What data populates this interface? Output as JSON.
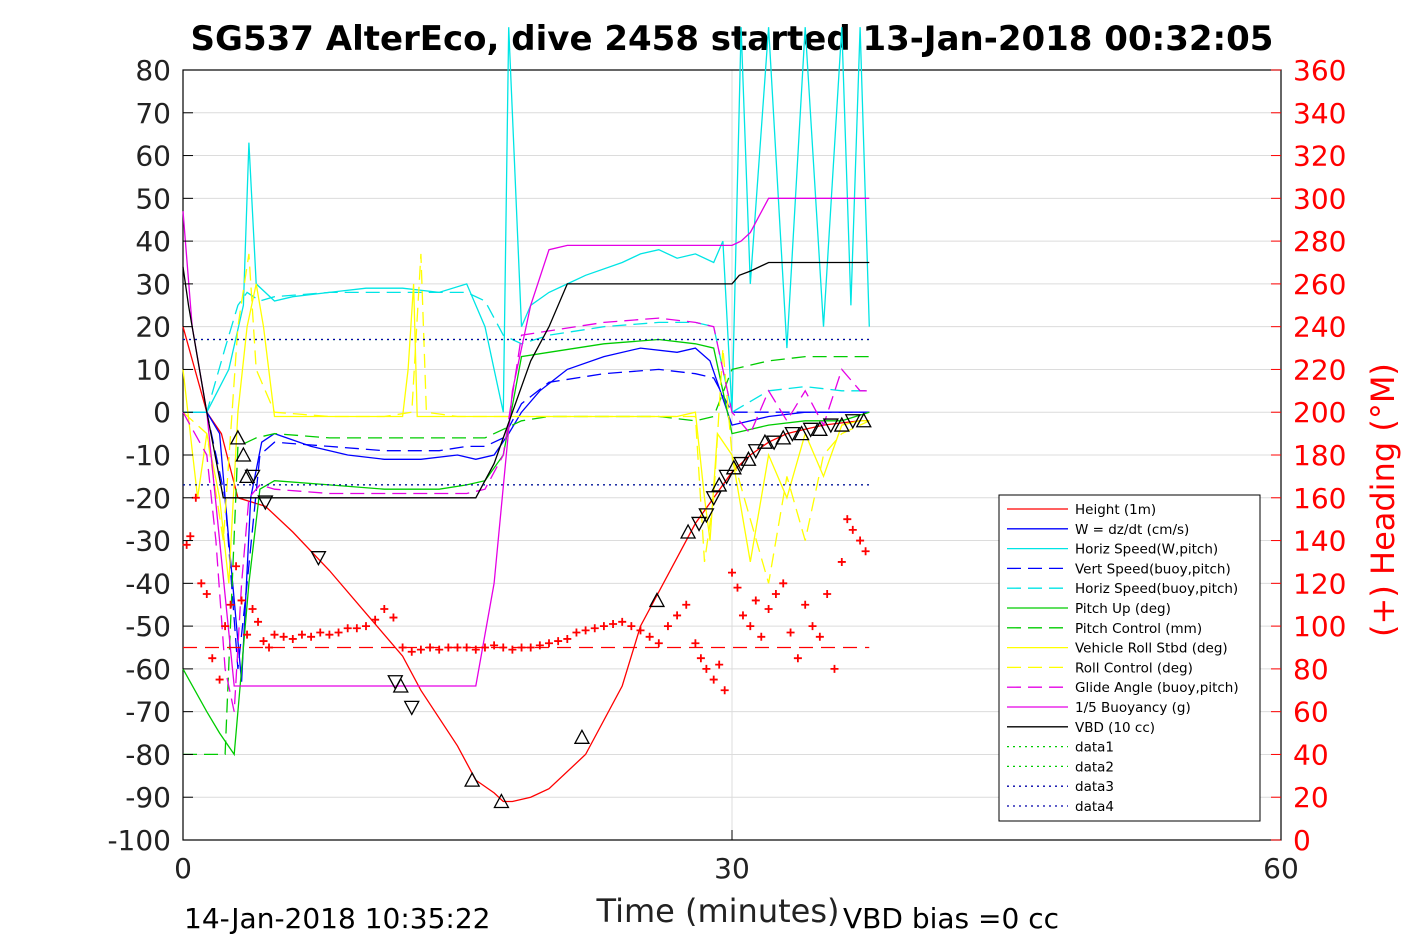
{
  "chart_data": {
    "type": "line",
    "title": "SG537 AlterEco, dive 2458 started 13-Jan-2018 00:32:05",
    "xlabel": "Time (minutes)",
    "ylabel": "",
    "ylabel_right": "(+) Heading (°M)",
    "xlim": [
      0,
      60
    ],
    "ylim": [
      -100,
      80
    ],
    "ylim_right": [
      0,
      360
    ],
    "xticks": [
      "0",
      "30",
      "60"
    ],
    "yticks": [
      "80",
      "70",
      "60",
      "50",
      "40",
      "30",
      "20",
      "10",
      "0",
      "-10",
      "-20",
      "-30",
      "-40",
      "-50",
      "-60",
      "-70",
      "-80",
      "-90",
      "-100"
    ],
    "yticks_right": [
      "360",
      "340",
      "320",
      "300",
      "280",
      "260",
      "240",
      "220",
      "200",
      "180",
      "160",
      "140",
      "120",
      "100",
      "80",
      "60",
      "40",
      "20",
      "0"
    ],
    "grid": true,
    "legend_position": "lower-right",
    "right_axis_color": "#ff0000",
    "footer_left": "14-Jan-2018 10:35:22",
    "footer_right": "VBD bias =0 cc",
    "legend": [
      {
        "name": "Height (1m)",
        "color": "#ff0000",
        "dash": "solid"
      },
      {
        "name": "W = dz/dt (cm/s)",
        "color": "#0000ff",
        "dash": "solid"
      },
      {
        "name": "Horiz Speed(W,pitch)",
        "color": "#00e5e5",
        "dash": "solid"
      },
      {
        "name": "Vert Speed(buoy,pitch)",
        "color": "#0000ff",
        "dash": "dashed"
      },
      {
        "name": "Horiz Speed(buoy,pitch)",
        "color": "#00e5e5",
        "dash": "dashed"
      },
      {
        "name": "Pitch Up (deg)",
        "color": "#00cc00",
        "dash": "solid"
      },
      {
        "name": "Pitch Control (mm)",
        "color": "#00cc00",
        "dash": "dashed"
      },
      {
        "name": "Vehicle Roll Stbd (deg)",
        "color": "#ffff00",
        "dash": "solid"
      },
      {
        "name": "Roll Control (deg)",
        "color": "#ffff00",
        "dash": "dashed"
      },
      {
        "name": "Glide Angle (buoy,pitch)",
        "color": "#e500e5",
        "dash": "dashed"
      },
      {
        "name": "1/5 Buoyancy (g)",
        "color": "#e500e5",
        "dash": "solid"
      },
      {
        "name": "VBD (10 cc)",
        "color": "#000000",
        "dash": "solid"
      },
      {
        "name": "data1",
        "color": "#00cc00",
        "dash": "dotted"
      },
      {
        "name": "data2",
        "color": "#00cc00",
        "dash": "dotted"
      },
      {
        "name": "data3",
        "color": "#0000aa",
        "dash": "dotted"
      },
      {
        "name": "data4",
        "color": "#0000aa",
        "dash": "dotted"
      }
    ],
    "series": [
      {
        "name": "Height (1m)",
        "color": "#ff0000",
        "dash": "solid",
        "x": [
          0,
          1.3,
          2.1,
          3,
          4.5,
          6,
          8,
          10,
          12,
          13,
          15,
          16,
          17,
          17.5,
          18,
          19,
          20,
          22,
          24,
          25,
          27,
          28,
          29,
          30,
          31,
          32,
          33,
          34,
          35,
          36,
          37,
          37.5
        ],
        "y": [
          20,
          0,
          -5,
          -20,
          -22,
          -28,
          -37,
          -47,
          -57,
          -65,
          -78,
          -86,
          -89,
          -91,
          -91,
          -90,
          -88,
          -80,
          -64,
          -50,
          -34,
          -26,
          -20,
          -14,
          -10,
          -7,
          -5,
          -4,
          -3,
          -2.5,
          -2,
          -2
        ]
      },
      {
        "name": "W = dz/dt (cm/s)",
        "color": "#0000ff",
        "dash": "solid",
        "x": [
          0,
          1.3,
          2,
          2.5,
          3.2,
          3.7,
          4.3,
          5,
          7,
          9,
          11,
          13,
          15,
          16,
          17,
          17.8,
          18.5,
          19.5,
          21,
          23,
          25,
          27,
          28,
          28.8,
          30,
          32,
          34,
          36,
          37,
          37.5
        ],
        "y": [
          0,
          0,
          -5,
          -30,
          -63,
          -20,
          -7,
          -5,
          -8,
          -10,
          -11,
          -11,
          -10,
          -11,
          -10,
          -5,
          0,
          5,
          10,
          13,
          15,
          14,
          15,
          12,
          -3,
          -1,
          0,
          0,
          0,
          0
        ]
      },
      {
        "name": "Horiz Speed(W,pitch)",
        "color": "#00e5e5",
        "dash": "solid",
        "x": [
          0,
          1.3,
          2.5,
          3.3,
          3.6,
          4,
          5,
          6,
          8,
          10,
          12,
          14,
          15.5,
          16.5,
          17,
          17.5,
          17.8,
          18.5,
          19,
          20,
          21,
          22,
          24,
          25,
          26,
          27,
          28,
          29,
          29.5,
          30,
          30.5,
          31,
          32,
          33,
          34,
          35,
          36,
          36.5,
          37,
          37.5
        ],
        "y": [
          0,
          0,
          10,
          25,
          63,
          30,
          26,
          27,
          28,
          29,
          29,
          28,
          30,
          20,
          10,
          0,
          90,
          20,
          25,
          28,
          30,
          32,
          35,
          37,
          38,
          36,
          37,
          35,
          40,
          0,
          90,
          30,
          90,
          15,
          90,
          20,
          90,
          25,
          90,
          20
        ]
      },
      {
        "name": "Vert Speed(buoy,pitch)",
        "color": "#0000ff",
        "dash": "dashed",
        "x": [
          0,
          1.3,
          2.3,
          3,
          3.5,
          4.2,
          5,
          8,
          11,
          14,
          15.5,
          16.5,
          17.5,
          18.5,
          20,
          23,
          26,
          28,
          29,
          30,
          32,
          34,
          36,
          37.5
        ],
        "y": [
          0,
          0,
          -20,
          -60,
          -40,
          -10,
          -7,
          -8,
          -9,
          -9,
          -8,
          -8,
          -6,
          2,
          7,
          9,
          10,
          9,
          8,
          0,
          0,
          0,
          0,
          0
        ]
      },
      {
        "name": "Horiz Speed(buoy,pitch)",
        "color": "#00e5e5",
        "dash": "dashed",
        "x": [
          0,
          1.3,
          2.3,
          3,
          3.5,
          4.2,
          5,
          8,
          11,
          14,
          15.5,
          16.5,
          17.5,
          18.5,
          20,
          23,
          26,
          28,
          29,
          30,
          32,
          34,
          36,
          37.5
        ],
        "y": [
          0,
          0,
          15,
          25,
          28,
          26,
          27,
          28,
          28,
          28,
          28,
          26,
          18,
          16,
          18,
          20,
          21,
          21,
          20,
          0,
          5,
          6,
          5,
          5
        ]
      },
      {
        "name": "Pitch Up (deg)",
        "color": "#00cc00",
        "dash": "solid",
        "x": [
          0,
          1.3,
          2,
          2.8,
          3.2,
          3.6,
          4.2,
          5,
          8,
          11,
          14,
          15.5,
          16.5,
          17.5,
          18.5,
          20,
          23,
          26,
          28,
          29,
          30,
          32,
          34,
          36,
          37.5
        ],
        "y": [
          -60,
          -70,
          -75,
          -80,
          -60,
          -40,
          -18,
          -16,
          -17,
          -18,
          -18,
          -17,
          -16,
          -10,
          13,
          14,
          16,
          17,
          16,
          15,
          -5,
          -3,
          -2,
          -2,
          0
        ]
      },
      {
        "name": "Pitch Control (mm)",
        "color": "#00cc00",
        "dash": "dashed",
        "x": [
          0,
          1.3,
          2.3,
          3,
          3.5,
          4,
          5,
          8,
          11,
          14,
          15.5,
          16.5,
          17.5,
          18.5,
          20,
          23,
          26,
          28,
          29,
          30,
          31,
          32,
          34,
          36,
          37.5
        ],
        "y": [
          -80,
          -80,
          -80,
          -8,
          -7,
          -6,
          -5,
          -6,
          -6,
          -6,
          -6,
          -6,
          -4,
          -2,
          -1,
          -1,
          -1,
          -2,
          -1,
          10,
          11,
          12,
          13,
          13,
          13
        ]
      },
      {
        "name": "Vehicle Roll Stbd (deg)",
        "color": "#ffff00",
        "dash": "solid",
        "x": [
          0,
          0.8,
          1.3,
          2,
          2.5,
          3,
          3.5,
          4,
          4.4,
          5,
          8,
          11,
          12,
          12.3,
          12.6,
          12.8,
          13.3,
          15,
          17,
          19,
          21,
          24,
          26,
          27,
          28,
          28.5,
          28.8,
          29.2,
          30,
          31,
          32,
          33,
          34,
          35,
          36,
          37,
          37.5
        ],
        "y": [
          10,
          -20,
          -5,
          -20,
          -40,
          0,
          20,
          30,
          20,
          -1,
          -1,
          -1,
          -1,
          10,
          30,
          -1,
          -1,
          -1,
          -1,
          -1,
          -1,
          -1,
          -1,
          -1,
          0,
          -20,
          -30,
          -5,
          -10,
          -35,
          -10,
          -20,
          -5,
          -15,
          -3,
          -2,
          -2
        ]
      },
      {
        "name": "Roll Control (deg)",
        "color": "#ffff00",
        "dash": "dashed",
        "x": [
          0,
          1.3,
          2.2,
          3,
          3.6,
          4,
          5,
          8,
          11,
          12.5,
          13,
          13.3,
          15,
          17,
          19,
          22,
          25,
          28,
          28.5,
          29,
          29.5,
          30,
          31,
          32,
          33,
          34,
          35,
          36,
          37,
          37.5
        ],
        "y": [
          0,
          -5,
          -30,
          20,
          37,
          10,
          0,
          -1,
          -1,
          0,
          37,
          0,
          -1,
          -1,
          -1,
          -1,
          -1,
          -1,
          -35,
          -20,
          15,
          -10,
          -25,
          -40,
          -15,
          -30,
          -10,
          -5,
          -3,
          -2
        ]
      },
      {
        "name": "Glide Angle (buoy,pitch)",
        "color": "#e500e5",
        "dash": "dashed",
        "x": [
          0,
          1.3,
          1.8,
          2.3,
          2.8,
          3.2,
          3.6,
          4.2,
          5,
          8,
          11,
          14,
          15.5,
          16.5,
          17.5,
          18.5,
          20,
          23,
          26,
          28,
          29,
          30,
          31,
          32,
          33,
          34,
          35,
          36,
          37,
          37.5
        ],
        "y": [
          0,
          -10,
          -30,
          -60,
          -70,
          -40,
          -20,
          -17,
          -18,
          -19,
          -19,
          -19,
          -19,
          -18,
          -10,
          18,
          19,
          21,
          22,
          21,
          20,
          0,
          -5,
          5,
          -2,
          5,
          -3,
          10,
          5,
          5
        ]
      },
      {
        "name": "1/5 Buoyancy (g)",
        "color": "#e500e5",
        "dash": "solid",
        "x": [
          0,
          0.5,
          1.3,
          2,
          2.8,
          3.3,
          5,
          8,
          11,
          14,
          15.5,
          16,
          17,
          18,
          19,
          20,
          21,
          24,
          27,
          29,
          30,
          30.5,
          31,
          32,
          33,
          35,
          37,
          37.5
        ],
        "y": [
          47,
          20,
          0,
          -30,
          -64,
          -64,
          -64,
          -64,
          -64,
          -64,
          -64,
          -64,
          -40,
          5,
          25,
          38,
          39,
          39,
          39,
          39,
          39,
          40,
          42,
          50,
          50,
          50,
          50,
          50
        ]
      },
      {
        "name": "VBD (10 cc)",
        "color": "#000000",
        "dash": "solid",
        "x": [
          0,
          0.3,
          1.3,
          2.2,
          2.6,
          5,
          8,
          11,
          14,
          15.5,
          16,
          17,
          18,
          19,
          20,
          21,
          22,
          24,
          27,
          30,
          30.4,
          31,
          32,
          33,
          34,
          35,
          36,
          37,
          37.5
        ],
        "y": [
          34,
          25,
          0,
          -20,
          -20,
          -20,
          -20,
          -20,
          -20,
          -20,
          -20,
          -12,
          0,
          12,
          20,
          30,
          30,
          30,
          30,
          30,
          32,
          33,
          35,
          35,
          35,
          35,
          35,
          35,
          35
        ]
      },
      {
        "name": "data1",
        "color": "#00cc00",
        "dash": "dotted",
        "x": [
          0,
          37.5
        ],
        "y": [
          17,
          17
        ]
      },
      {
        "name": "data2",
        "color": "#00cc00",
        "dash": "dotted",
        "x": [
          0,
          37.5
        ],
        "y": [
          -17,
          -17
        ]
      },
      {
        "name": "data3",
        "color": "#0000aa",
        "dash": "dotted",
        "x": [
          0,
          37.5
        ],
        "y": [
          17,
          17
        ]
      },
      {
        "name": "data4",
        "color": "#0000aa",
        "dash": "dotted",
        "x": [
          0,
          37.5
        ],
        "y": [
          -17,
          -17
        ]
      }
    ],
    "reference_lines": [
      {
        "axis": "right",
        "value": 90,
        "color": "#ff0000",
        "dash": "dashed",
        "x": [
          0,
          37.5
        ]
      }
    ],
    "heading_points": {
      "axis": "right",
      "color": "#ff0000",
      "x": [
        0.2,
        0.4,
        0.7,
        1.0,
        1.3,
        1.6,
        2.0,
        2.3,
        2.6,
        2.9,
        3.2,
        3.5,
        3.8,
        4.1,
        4.4,
        4.7,
        5.0,
        5.5,
        6,
        6.5,
        7,
        7.5,
        8,
        8.5,
        9,
        9.5,
        10,
        10.5,
        11,
        11.5,
        12,
        12.5,
        13,
        13.5,
        14,
        14.5,
        15,
        15.5,
        16,
        16.5,
        17,
        17.5,
        18,
        18.5,
        19,
        19.5,
        20,
        20.5,
        21,
        21.5,
        22,
        22.5,
        23,
        23.5,
        24,
        24.5,
        25,
        25.5,
        26,
        26.5,
        27,
        27.5,
        28,
        28.3,
        28.6,
        29,
        29.3,
        29.6,
        30,
        30.3,
        30.6,
        31,
        31.3,
        31.6,
        32,
        32.4,
        32.8,
        33.2,
        33.6,
        34,
        34.4,
        34.8,
        35.2,
        35.6,
        36,
        36.3,
        36.6,
        37,
        37.3
      ],
      "y": [
        138,
        142,
        160,
        120,
        115,
        85,
        75,
        100,
        110,
        128,
        112,
        96,
        108,
        102,
        93,
        90,
        96,
        95,
        94,
        96,
        95,
        97,
        96,
        97,
        99,
        99,
        100,
        103,
        108,
        104,
        90,
        88,
        89,
        90,
        89,
        90,
        90,
        90,
        89,
        90,
        91,
        90,
        89,
        90,
        90,
        91,
        92,
        93,
        94,
        97,
        98,
        99,
        100,
        101,
        102,
        100,
        98,
        95,
        92,
        100,
        105,
        110,
        92,
        85,
        80,
        75,
        82,
        70,
        125,
        118,
        105,
        100,
        112,
        95,
        108,
        115,
        120,
        97,
        85,
        110,
        100,
        95,
        115,
        80,
        130,
        150,
        145,
        140,
        135
      ]
    },
    "triangle_markers": {
      "color": "#000000",
      "x": [
        3.0,
        3.3,
        3.5,
        3.8,
        4.5,
        7.4,
        11.6,
        11.9,
        12.5,
        15.8,
        17.4,
        21.8,
        25.9,
        27.6,
        28.2,
        28.6,
        29.0,
        29.3,
        29.7,
        30.1,
        30.5,
        30.9,
        31.3,
        31.8,
        32.3,
        32.8,
        33.3,
        33.8,
        34.3,
        34.8,
        35.4,
        36.0,
        36.6,
        37.2
      ],
      "y": [
        -6,
        -10,
        -15,
        -15,
        -21,
        -34,
        -63,
        -64,
        -69,
        -86,
        -91,
        -76,
        -44,
        -28,
        -26,
        -24,
        -20,
        -17,
        -15,
        -13,
        -12,
        -11,
        -9,
        -7,
        -7,
        -6,
        -5,
        -5,
        -4,
        -4,
        -3,
        -3,
        -2,
        -2
      ],
      "dir": [
        "up",
        "up",
        "up",
        "down",
        "down",
        "down",
        "down",
        "up",
        "down",
        "up",
        "up",
        "up",
        "up",
        "up",
        "down",
        "down",
        "down",
        "up",
        "down",
        "up",
        "down",
        "up",
        "down",
        "up",
        "down",
        "up",
        "down",
        "up",
        "down",
        "up",
        "down",
        "up",
        "down",
        "up"
      ]
    }
  }
}
